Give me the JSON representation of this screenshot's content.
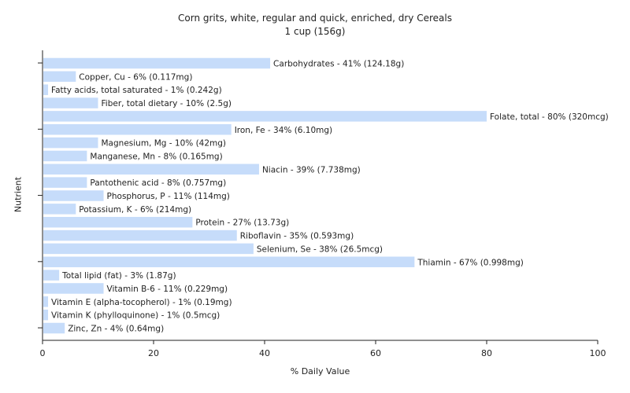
{
  "chart_data": {
    "type": "bar",
    "orientation": "horizontal",
    "title": "Corn grits, white, regular and quick, enriched, dry Cereals",
    "subtitle": "1 cup (156g)",
    "xlabel": "% Daily Value",
    "ylabel": "Nutrient",
    "xlim": [
      0,
      100
    ],
    "xticks": [
      "0",
      "20",
      "40",
      "60",
      "80",
      "100"
    ],
    "grid": false,
    "bar_color": "#c6dcfa",
    "categories": [
      "Carbohydrates",
      "Copper, Cu",
      "Fatty acids, total saturated",
      "Fiber, total dietary",
      "Folate, total",
      "Iron, Fe",
      "Magnesium, Mg",
      "Manganese, Mn",
      "Niacin",
      "Pantothenic acid",
      "Phosphorus, P",
      "Potassium, K",
      "Protein",
      "Riboflavin",
      "Selenium, Se",
      "Thiamin",
      "Total lipid (fat)",
      "Vitamin B-6",
      "Vitamin E (alpha-tocopherol)",
      "Vitamin K (phylloquinone)",
      "Zinc, Zn"
    ],
    "values": [
      41,
      6,
      1,
      10,
      80,
      34,
      10,
      8,
      39,
      8,
      11,
      6,
      27,
      35,
      38,
      67,
      3,
      11,
      1,
      1,
      4
    ],
    "labels": [
      "Carbohydrates - 41% (124.18g)",
      "Copper, Cu - 6% (0.117mg)",
      "Fatty acids, total saturated - 1% (0.242g)",
      "Fiber, total dietary - 10% (2.5g)",
      "Folate, total - 80% (320mcg)",
      "Iron, Fe - 34% (6.10mg)",
      "Magnesium, Mg - 10% (42mg)",
      "Manganese, Mn - 8% (0.165mg)",
      "Niacin - 39% (7.738mg)",
      "Pantothenic acid - 8% (0.757mg)",
      "Phosphorus, P - 11% (114mg)",
      "Potassium, K - 6% (214mg)",
      "Protein - 27% (13.73g)",
      "Riboflavin - 35% (0.593mg)",
      "Selenium, Se - 38% (26.5mcg)",
      "Thiamin - 67% (0.998mg)",
      "Total lipid (fat) - 3% (1.87g)",
      "Vitamin B-6 - 11% (0.229mg)",
      "Vitamin E (alpha-tocopherol) - 1% (0.19mg)",
      "Vitamin K (phylloquinone) - 1% (0.5mcg)",
      "Zinc, Zn - 4% (0.64mg)"
    ]
  }
}
